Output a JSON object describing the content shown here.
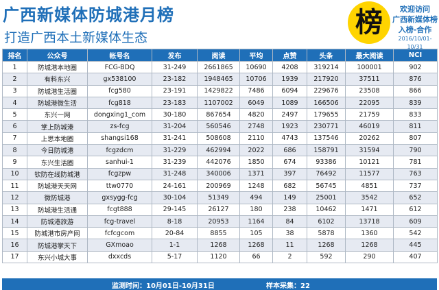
{
  "header": {
    "title": "广西新媒体防城港月榜",
    "subtitle": "打造广西本土新媒体生态",
    "badge_char": "榜",
    "promo": {
      "line1": "欢迎访问",
      "line2": "广西新媒体榜",
      "line3": "入榜-合作",
      "date_range": "2016/10/01-10/31"
    }
  },
  "table": {
    "columns": [
      "排名",
      "公众号",
      "帐号名",
      "发布",
      "阅读",
      "平均",
      "点赞",
      "头条",
      "最大阅读",
      "NCI"
    ],
    "rows": [
      [
        "1",
        "防城港本地圈",
        "FCG-BDQ",
        "31-249",
        "2661865",
        "10690",
        "4208",
        "319214",
        "100001",
        "902"
      ],
      [
        "2",
        "有料东兴",
        "gx538100",
        "23-182",
        "1948465",
        "10706",
        "1939",
        "217920",
        "37511",
        "876"
      ],
      [
        "3",
        "防城港生活圈",
        "fcg580",
        "23-191",
        "1429822",
        "7486",
        "6094",
        "229676",
        "23508",
        "866"
      ],
      [
        "4",
        "防城港微生活",
        "fcg818",
        "23-183",
        "1107002",
        "6049",
        "1089",
        "166506",
        "22095",
        "839"
      ],
      [
        "5",
        "东兴一网",
        "dongxing1_com",
        "30-180",
        "867654",
        "4820",
        "2497",
        "179655",
        "21759",
        "833"
      ],
      [
        "6",
        "掌上防城港",
        "zs-fcg",
        "31-204",
        "560546",
        "2748",
        "1923",
        "230771",
        "46019",
        "811"
      ],
      [
        "7",
        "上思本地圈",
        "shangsi168",
        "31-241",
        "508608",
        "2110",
        "4743",
        "137546",
        "20262",
        "807"
      ],
      [
        "8",
        "今日防城港",
        "fcgzdcm",
        "31-229",
        "462994",
        "2022",
        "686",
        "158791",
        "31594",
        "790"
      ],
      [
        "9",
        "东兴生活圈",
        "sanhui-1",
        "31-239",
        "442076",
        "1850",
        "674",
        "93386",
        "10121",
        "781"
      ],
      [
        "10",
        "钦防在线防城港",
        "fcgzpw",
        "31-248",
        "340006",
        "1371",
        "397",
        "76492",
        "11577",
        "763"
      ],
      [
        "11",
        "防城港天天网",
        "ttw0770",
        "24-161",
        "200969",
        "1248",
        "682",
        "56745",
        "4851",
        "737"
      ],
      [
        "12",
        "微防城港",
        "gxsygg-fcg",
        "30-104",
        "51349",
        "494",
        "149",
        "25001",
        "3542",
        "652"
      ],
      [
        "13",
        "防城港生活通",
        "fcgt888",
        "29-145",
        "26127",
        "180",
        "238",
        "10462",
        "1471",
        "612"
      ],
      [
        "14",
        "防城港旅游",
        "fcg-travel",
        "8-18",
        "20953",
        "1164",
        "84",
        "6102",
        "13718",
        "609"
      ],
      [
        "15",
        "防城港市房产网",
        "fcfcgcom",
        "20-84",
        "8855",
        "105",
        "38",
        "5878",
        "1360",
        "542"
      ],
      [
        "16",
        "防城港掌天下",
        "GXmoao",
        "1-1",
        "1268",
        "1268",
        "11",
        "1268",
        "1268",
        "445"
      ],
      [
        "17",
        "东兴小城大事",
        "dxxcds",
        "5-17",
        "1120",
        "66",
        "2",
        "592",
        "290",
        "407"
      ]
    ]
  },
  "footer": {
    "period": "监测时间：10月01日-10月31日",
    "sample": "样本采集：22"
  },
  "colors": {
    "accent": "#1f6fb8",
    "badge": "#ffd400",
    "stripe": "#e6eaf2"
  }
}
